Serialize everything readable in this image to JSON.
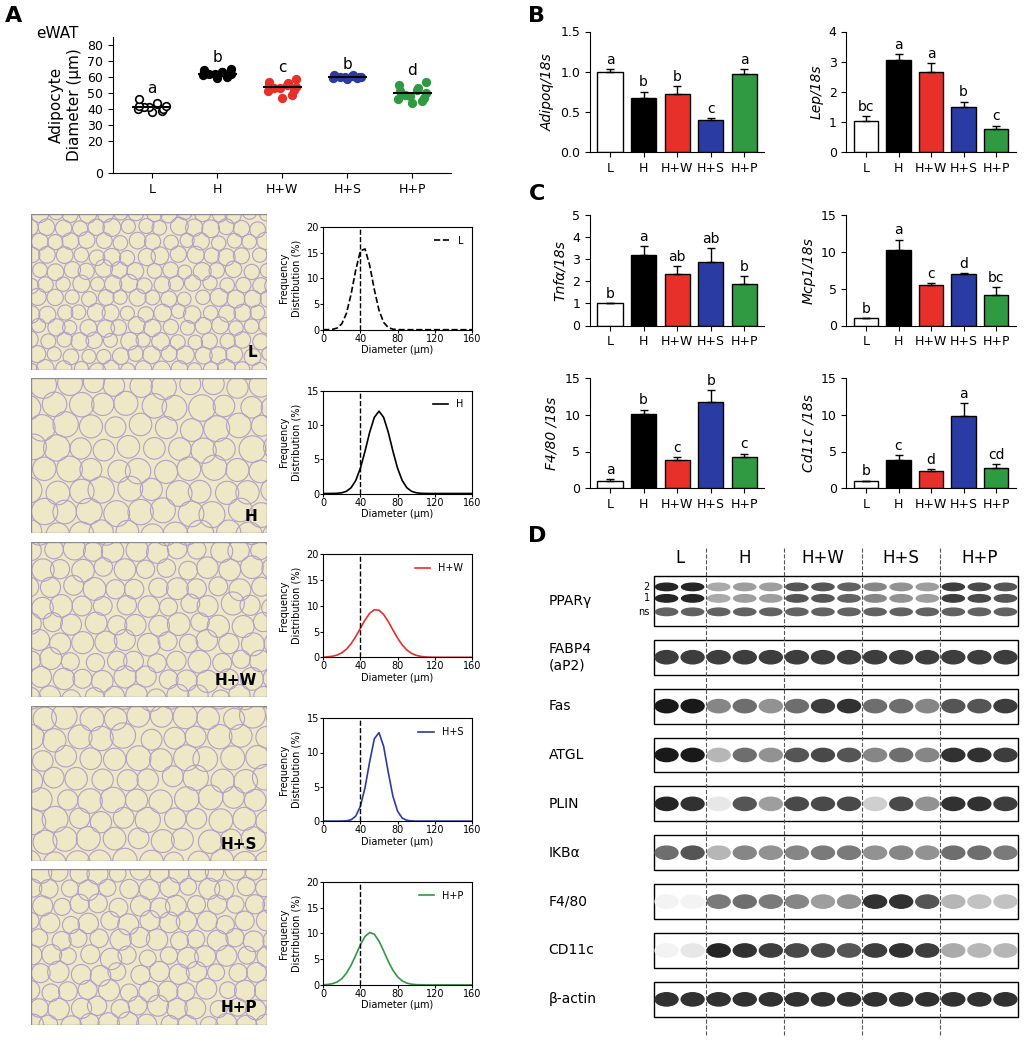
{
  "panel_labels": [
    "A",
    "B",
    "C",
    "D"
  ],
  "tissue_label": "eWAT",
  "chart_data": [
    {
      "type": "scatter",
      "categories": [
        "L",
        "H",
        "H+W",
        "H+S",
        "H+P"
      ],
      "values": [
        [
          38,
          39,
          40,
          40,
          41,
          41,
          42,
          42,
          43,
          44,
          46
        ],
        [
          59.5,
          60,
          61,
          61,
          61.5,
          62,
          62,
          62.5,
          63,
          63,
          64,
          65
        ],
        [
          47,
          49,
          51,
          52,
          53,
          53,
          54,
          55,
          55,
          56,
          57,
          59
        ],
        [
          59,
          59.5,
          59.5,
          60,
          60,
          60,
          60,
          60.5,
          60.5,
          61,
          61
        ],
        [
          44,
          45,
          46,
          47,
          48,
          49,
          50,
          51,
          52,
          53,
          55,
          57
        ]
      ],
      "colors": [
        "#ffffff",
        "#000000",
        "#e8302a",
        "#2a3ca3",
        "#2f9a41"
      ],
      "marker": "o",
      "y_label": "Adipocyte\nDiameter (µm)",
      "ylim": [
        0,
        85
      ],
      "yticks": [
        0,
        20,
        30,
        40,
        50,
        60,
        70,
        80
      ],
      "annotations": [
        "a",
        "b",
        "c",
        "b",
        "d"
      ]
    },
    {
      "type": "line",
      "x": [
        0,
        5,
        10,
        15,
        20,
        25,
        30,
        35,
        40,
        45,
        50,
        55,
        60,
        65,
        70,
        75,
        80,
        85,
        90,
        95,
        100,
        105,
        110,
        115,
        120,
        125,
        130,
        135,
        140,
        145,
        150,
        155,
        160
      ],
      "series": [
        {
          "name": "L",
          "color": "#000000",
          "line_style": "dashed",
          "values": [
            0,
            0.01,
            0.07,
            0.32,
            1.14,
            3.17,
            6.9,
            11.6,
            15.3,
            15.7,
            12.5,
            7.8,
            3.8,
            1.42,
            0.42,
            0.1,
            0.02,
            0,
            0,
            0,
            0,
            0,
            0,
            0,
            0,
            0,
            0,
            0,
            0,
            0,
            0,
            0,
            0
          ]
        }
      ],
      "xlim": [
        0,
        160
      ],
      "xticks": [
        0,
        40,
        80,
        120,
        160
      ],
      "ylim": [
        0,
        20
      ],
      "yticks": [
        0,
        5,
        10,
        15,
        20
      ],
      "x_label": "Diameter (µm)",
      "y_label": "Frequency\nDistribution (%)",
      "reference_x": 40,
      "legend": "upper right"
    },
    {
      "type": "line",
      "x": [
        0,
        5,
        10,
        15,
        20,
        25,
        30,
        35,
        40,
        45,
        50,
        55,
        60,
        65,
        70,
        75,
        80,
        85,
        90,
        95,
        100,
        105,
        110,
        115,
        120,
        125,
        130,
        135,
        140,
        145,
        150,
        155,
        160
      ],
      "series": [
        {
          "name": "H",
          "color": "#000000",
          "line_style": "solid",
          "values": [
            0,
            0,
            0.01,
            0.03,
            0.11,
            0.32,
            0.84,
            1.89,
            3.68,
            6.17,
            8.93,
            11.1,
            12,
            11.1,
            8.93,
            6.17,
            3.68,
            1.89,
            0.84,
            0.32,
            0.11,
            0.03,
            0.01,
            0,
            0,
            0,
            0,
            0,
            0,
            0,
            0,
            0,
            0
          ]
        }
      ],
      "xlim": [
        0,
        160
      ],
      "xticks": [
        0,
        40,
        80,
        120,
        160
      ],
      "ylim": [
        0,
        15
      ],
      "yticks": [
        0,
        5,
        10,
        15
      ],
      "x_label": "Diameter (µm)",
      "y_label": "Frequency\nDistribution (%)",
      "reference_x": 40,
      "legend": "upper right"
    },
    {
      "type": "line",
      "x": [
        0,
        5,
        10,
        15,
        20,
        25,
        30,
        35,
        40,
        45,
        50,
        55,
        60,
        65,
        70,
        75,
        80,
        85,
        90,
        95,
        100,
        105,
        110,
        115,
        120,
        125,
        130,
        135,
        140,
        145,
        150,
        155,
        160
      ],
      "series": [
        {
          "name": "H+W",
          "color": "#e8302a",
          "line_style": "solid",
          "values": [
            0.03,
            0.09,
            0.2,
            0.44,
            0.87,
            1.58,
            2.64,
            4.03,
            5.64,
            7.25,
            8.55,
            9.24,
            9.16,
            8.33,
            6.95,
            5.31,
            3.73,
            2.4,
            1.42,
            0.76,
            0.38,
            0.17,
            0.07,
            0.03,
            0.01,
            0,
            0,
            0,
            0,
            0,
            0,
            0,
            0
          ]
        }
      ],
      "xlim": [
        0,
        160
      ],
      "xticks": [
        0,
        40,
        80,
        120,
        160
      ],
      "ylim": [
        0,
        20
      ],
      "yticks": [
        0,
        5,
        10,
        15,
        20
      ],
      "x_label": "Diameter (µm)",
      "y_label": "Frequency\nDistribution (%)",
      "reference_x": 40,
      "legend": "upper right"
    },
    {
      "type": "line",
      "x": [
        0,
        5,
        10,
        15,
        20,
        25,
        30,
        35,
        40,
        45,
        50,
        55,
        60,
        65,
        70,
        75,
        80,
        85,
        90,
        95,
        100,
        105,
        110,
        115,
        120,
        125,
        130,
        135,
        140,
        145,
        150,
        155,
        160
      ],
      "series": [
        {
          "name": "H+S",
          "color": "#2a3ca3",
          "line_style": "solid",
          "values": [
            0,
            0,
            0,
            0,
            0.01,
            0.04,
            0.19,
            0.73,
            2.15,
            4.88,
            8.67,
            12.0,
            12.9,
            10.9,
            7.1,
            3.61,
            1.44,
            0.44,
            0.11,
            0.02,
            0,
            0,
            0,
            0,
            0,
            0,
            0,
            0,
            0,
            0,
            0,
            0,
            0
          ]
        }
      ],
      "xlim": [
        0,
        160
      ],
      "xticks": [
        0,
        40,
        80,
        120,
        160
      ],
      "ylim": [
        0,
        15
      ],
      "yticks": [
        0,
        5,
        10,
        15
      ],
      "x_label": "Diameter (µm)",
      "y_label": "Frequency\nDistribution (%)",
      "reference_x": 40,
      "legend": "upper right"
    },
    {
      "type": "line",
      "x": [
        0,
        5,
        10,
        15,
        20,
        25,
        30,
        35,
        40,
        45,
        50,
        55,
        60,
        65,
        70,
        75,
        80,
        85,
        90,
        95,
        100,
        105,
        110,
        115,
        120,
        125,
        130,
        135,
        140,
        145,
        150,
        155,
        160
      ],
      "series": [
        {
          "name": "H+P",
          "color": "#2f9a41",
          "line_style": "solid",
          "values": [
            0.03,
            0.09,
            0.24,
            0.57,
            1.2,
            2.27,
            3.83,
            5.77,
            7.79,
            9.42,
            10.18,
            9.84,
            8.52,
            6.6,
            4.57,
            2.84,
            1.57,
            0.78,
            0.35,
            0.14,
            0.05,
            0.02,
            0,
            0,
            0,
            0,
            0,
            0,
            0,
            0,
            0,
            0,
            0
          ]
        }
      ],
      "xlim": [
        0,
        160
      ],
      "xticks": [
        0,
        40,
        80,
        120,
        160
      ],
      "ylim": [
        0,
        20
      ],
      "yticks": [
        0,
        5,
        10,
        15,
        20
      ],
      "x_label": "Diameter (µm)",
      "y_label": "Frequency\nDistribution (%)",
      "reference_x": 40,
      "legend": "upper right"
    },
    {
      "type": "bar",
      "categories": [
        "L",
        "H",
        "H+W",
        "H+S",
        "H+P"
      ],
      "values": [
        1.0,
        0.67,
        0.72,
        0.4,
        0.97
      ],
      "errors": [
        0.03,
        0.08,
        0.1,
        0.02,
        0.06
      ],
      "colors": [
        "#ffffff",
        "#000000",
        "#e8302a",
        "#2a3ca3",
        "#2f9a41"
      ],
      "y_label": "Adipoq/18s",
      "ylim": [
        0,
        1.5
      ],
      "yticks": [
        {
          "value": 0,
          "label": "0.0"
        },
        {
          "value": 0.5,
          "label": "0.5"
        },
        {
          "value": 1,
          "label": "1.0"
        },
        {
          "value": 1.5,
          "label": "1.5"
        }
      ],
      "annotations": [
        "a",
        "b",
        "b",
        "c",
        "a"
      ]
    },
    {
      "type": "bar",
      "categories": [
        "L",
        "H",
        "H+W",
        "H+S",
        "H+P"
      ],
      "values": [
        1.05,
        3.05,
        2.65,
        1.5,
        0.78
      ],
      "errors": [
        0.15,
        0.2,
        0.3,
        0.18,
        0.1
      ],
      "colors": [
        "#ffffff",
        "#000000",
        "#e8302a",
        "#2a3ca3",
        "#2f9a41"
      ],
      "y_label": "Lep/18s",
      "ylim": [
        0,
        4
      ],
      "yticks": [
        0,
        1,
        2,
        3,
        4
      ],
      "annotations": [
        "bc",
        "a",
        "a",
        "b",
        "c"
      ]
    },
    {
      "type": "bar",
      "categories": [
        "L",
        "H",
        "H+W",
        "H+S",
        "H+P"
      ],
      "values": [
        1.0,
        3.2,
        2.35,
        2.9,
        1.88
      ],
      "errors": [
        0.02,
        0.4,
        0.35,
        0.6,
        0.35
      ],
      "colors": [
        "#ffffff",
        "#000000",
        "#e8302a",
        "#2a3ca3",
        "#2f9a41"
      ],
      "y_label": "Tnfα/18s",
      "ylim": [
        0,
        5
      ],
      "yticks": [
        0,
        1,
        2,
        3,
        4,
        5
      ],
      "annotations": [
        "b",
        "a",
        "ab",
        "ab",
        "b"
      ]
    },
    {
      "type": "bar",
      "categories": [
        "L",
        "H",
        "H+W",
        "H+S",
        "H+P"
      ],
      "values": [
        1.0,
        10.3,
        5.5,
        7.0,
        4.2
      ],
      "errors": [
        0.05,
        1.4,
        0.25,
        0.15,
        1.0
      ],
      "colors": [
        "#ffffff",
        "#000000",
        "#e8302a",
        "#2a3ca3",
        "#2f9a41"
      ],
      "y_label": "Mcp1/18s",
      "ylim": [
        0,
        15
      ],
      "yticks": [
        0,
        5,
        10,
        15
      ],
      "annotations": [
        "b",
        "a",
        "c",
        "d",
        "bc"
      ]
    },
    {
      "type": "bar",
      "categories": [
        "L",
        "H",
        "H+W",
        "H+S",
        "H+P"
      ],
      "values": [
        1.0,
        10.1,
        3.9,
        11.8,
        4.2
      ],
      "errors": [
        0.2,
        0.6,
        0.3,
        1.5,
        0.5
      ],
      "colors": [
        "#ffffff",
        "#000000",
        "#e8302a",
        "#2a3ca3",
        "#2f9a41"
      ],
      "y_label": "F4/80 /18s",
      "ylim": [
        0,
        15
      ],
      "yticks": [
        0,
        5,
        10,
        15
      ],
      "annotations": [
        "a",
        "b",
        "c",
        "b",
        "c"
      ]
    },
    {
      "type": "bar",
      "categories": [
        "L",
        "H",
        "H+W",
        "H+S",
        "H+P"
      ],
      "values": [
        1.0,
        3.9,
        2.3,
        9.8,
        2.8
      ],
      "errors": [
        0.05,
        0.6,
        0.35,
        1.8,
        0.5
      ],
      "colors": [
        "#ffffff",
        "#000000",
        "#e8302a",
        "#2a3ca3",
        "#2f9a41"
      ],
      "y_label": "Cd11c /18s",
      "ylim": [
        0,
        15
      ],
      "yticks": [
        0,
        5,
        10,
        15
      ],
      "annotations": [
        "b",
        "c",
        "d",
        "a",
        "cd"
      ]
    }
  ],
  "histology": {
    "labels": [
      "L",
      "H",
      "H+W",
      "H+S",
      "H+P"
    ]
  },
  "blot": {
    "groups": [
      {
        "label": "L",
        "lanes": 2
      },
      {
        "label": "H",
        "lanes": 3
      },
      {
        "label": "H+W",
        "lanes": 3
      },
      {
        "label": "H+S",
        "lanes": 3
      },
      {
        "label": "H+P",
        "lanes": 3
      }
    ],
    "rows": [
      {
        "label": "PPARγ",
        "sublabels": [
          "2",
          "1",
          "ns"
        ],
        "bands": [
          0.9,
          0.9,
          0.35,
          0.4,
          0.4,
          0.7,
          0.7,
          0.65,
          0.5,
          0.45,
          0.4,
          0.8,
          0.75,
          0.7
        ]
      },
      {
        "label": "FABP4\n(aP2)",
        "bands": [
          0.8,
          0.8,
          0.8,
          0.8,
          0.8,
          0.8,
          0.8,
          0.8,
          0.8,
          0.8,
          0.8,
          0.8,
          0.8,
          0.8
        ]
      },
      {
        "label": "Fas",
        "bands": [
          0.95,
          0.95,
          0.5,
          0.6,
          0.45,
          0.6,
          0.8,
          0.85,
          0.6,
          0.6,
          0.5,
          0.7,
          0.7,
          0.8
        ]
      },
      {
        "label": "ATGL",
        "bands": [
          0.95,
          0.95,
          0.3,
          0.6,
          0.45,
          0.7,
          0.75,
          0.7,
          0.5,
          0.6,
          0.5,
          0.85,
          0.85,
          0.8
        ]
      },
      {
        "label": "PLIN",
        "bands": [
          0.9,
          0.85,
          0.1,
          0.7,
          0.4,
          0.75,
          0.75,
          0.75,
          0.2,
          0.75,
          0.45,
          0.85,
          0.85,
          0.8
        ]
      },
      {
        "label": "IKBα",
        "bands": [
          0.6,
          0.7,
          0.3,
          0.5,
          0.45,
          0.5,
          0.55,
          0.55,
          0.45,
          0.5,
          0.45,
          0.6,
          0.6,
          0.55
        ]
      },
      {
        "label": "F4/80",
        "bands": [
          0.05,
          0.05,
          0.55,
          0.6,
          0.55,
          0.5,
          0.4,
          0.45,
          0.85,
          0.85,
          0.7,
          0.3,
          0.25,
          0.25
        ]
      },
      {
        "label": "CD11c",
        "bands": [
          0.05,
          0.1,
          0.9,
          0.85,
          0.8,
          0.75,
          0.75,
          0.7,
          0.8,
          0.85,
          0.8,
          0.35,
          0.3,
          0.3
        ]
      },
      {
        "label": "β-actin",
        "bands": [
          0.85,
          0.85,
          0.85,
          0.85,
          0.85,
          0.85,
          0.85,
          0.85,
          0.85,
          0.85,
          0.85,
          0.85,
          0.85,
          0.85
        ]
      }
    ]
  }
}
